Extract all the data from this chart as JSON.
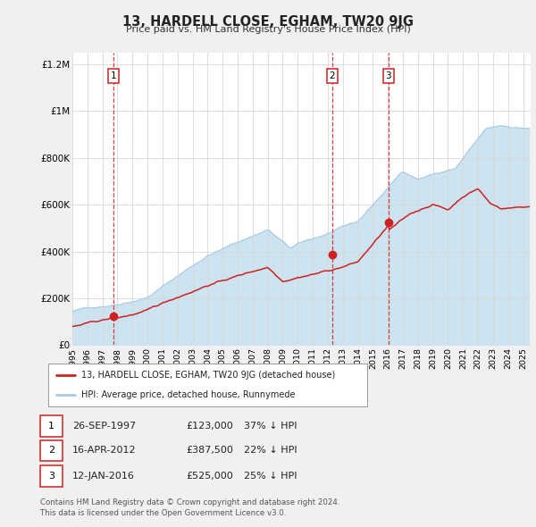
{
  "title": "13, HARDELL CLOSE, EGHAM, TW20 9JG",
  "subtitle": "Price paid vs. HM Land Registry's House Price Index (HPI)",
  "background_color": "#f0f0f0",
  "plot_background_color": "#ffffff",
  "hpi_color": "#a8cce4",
  "hpi_fill_color": "#cde3f0",
  "price_color": "#cc2222",
  "dashed_vline_color": "#cc2222",
  "ylim": [
    0,
    1250000
  ],
  "yticks": [
    0,
    200000,
    400000,
    600000,
    800000,
    1000000,
    1200000
  ],
  "ytick_labels": [
    "£0",
    "£200K",
    "£400K",
    "£600K",
    "£800K",
    "£1M",
    "£1.2M"
  ],
  "transactions": [
    {
      "date_label": "1",
      "date": "26-SEP-1997",
      "price": 123000,
      "pct": "37% ↓ HPI",
      "year": 1997.74
    },
    {
      "date_label": "2",
      "date": "16-APR-2012",
      "price": 387500,
      "pct": "22% ↓ HPI",
      "year": 2012.29
    },
    {
      "date_label": "3",
      "date": "12-JAN-2016",
      "price": 525000,
      "pct": "25% ↓ HPI",
      "year": 2016.04
    }
  ],
  "legend_label_price": "13, HARDELL CLOSE, EGHAM, TW20 9JG (detached house)",
  "legend_label_hpi": "HPI: Average price, detached house, Runnymede",
  "footnote": "Contains HM Land Registry data © Crown copyright and database right 2024.\nThis data is licensed under the Open Government Licence v3.0.",
  "xmin": 1995.0,
  "xmax": 2025.5,
  "xticks": [
    1995,
    1996,
    1997,
    1998,
    1999,
    2000,
    2001,
    2002,
    2003,
    2004,
    2005,
    2006,
    2007,
    2008,
    2009,
    2010,
    2011,
    2012,
    2013,
    2014,
    2015,
    2016,
    2017,
    2018,
    2019,
    2020,
    2021,
    2022,
    2023,
    2024,
    2025
  ]
}
